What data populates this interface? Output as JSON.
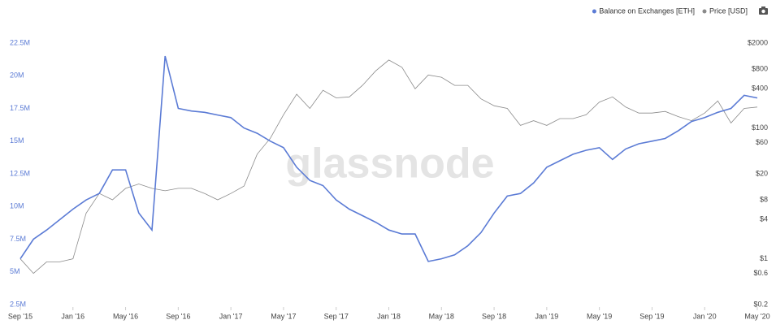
{
  "chart_data": {
    "type": "line",
    "watermark": "glassnode",
    "x": [
      "2015-09",
      "2015-10",
      "2015-11",
      "2015-12",
      "2016-01",
      "2016-02",
      "2016-03",
      "2016-04",
      "2016-05",
      "2016-06",
      "2016-07",
      "2016-08",
      "2016-09",
      "2016-10",
      "2016-11",
      "2016-12",
      "2017-01",
      "2017-02",
      "2017-03",
      "2017-04",
      "2017-05",
      "2017-06",
      "2017-07",
      "2017-08",
      "2017-09",
      "2017-10",
      "2017-11",
      "2017-12",
      "2018-01",
      "2018-02",
      "2018-03",
      "2018-04",
      "2018-05",
      "2018-06",
      "2018-07",
      "2018-08",
      "2018-09",
      "2018-10",
      "2018-11",
      "2018-12",
      "2019-01",
      "2019-02",
      "2019-03",
      "2019-04",
      "2019-05",
      "2019-06",
      "2019-07",
      "2019-08",
      "2019-09",
      "2019-10",
      "2019-11",
      "2019-12",
      "2020-01",
      "2020-02",
      "2020-03",
      "2020-04",
      "2020-05"
    ],
    "series": [
      {
        "name": "Balance on Exchanges [ETH]",
        "color": "#5b7bd5",
        "axis": "y",
        "values": [
          6000000,
          7500000,
          8200000,
          9000000,
          9800000,
          10500000,
          11000000,
          12800000,
          12800000,
          9500000,
          8200000,
          21500000,
          17500000,
          17300000,
          17200000,
          17000000,
          16800000,
          16000000,
          15600000,
          15000000,
          14500000,
          13000000,
          12000000,
          11600000,
          10500000,
          9800000,
          9300000,
          8800000,
          8200000,
          7900000,
          7900000,
          5800000,
          6000000,
          6300000,
          7000000,
          8000000,
          9500000,
          10800000,
          11000000,
          11800000,
          13000000,
          13500000,
          14000000,
          14300000,
          14500000,
          13600000,
          14400000,
          14800000,
          15000000,
          15200000,
          15800000,
          16500000,
          16800000,
          17200000,
          17500000,
          18500000,
          18300000
        ]
      },
      {
        "name": "Price [USD]",
        "color": "#8a8a8a",
        "axis": "y2",
        "values": [
          1.0,
          0.6,
          0.9,
          0.9,
          1.0,
          5,
          10,
          8,
          12,
          14,
          12,
          11,
          12,
          12,
          10,
          8,
          10,
          13,
          40,
          70,
          160,
          330,
          200,
          380,
          290,
          300,
          450,
          750,
          1100,
          850,
          400,
          650,
          600,
          450,
          450,
          280,
          220,
          200,
          110,
          130,
          110,
          140,
          140,
          160,
          250,
          300,
          210,
          170,
          170,
          180,
          150,
          130,
          170,
          260,
          120,
          200,
          210
        ]
      }
    ],
    "xlim": [
      "2015-09",
      "2020-05"
    ],
    "xticks": [
      {
        "value": "2015-09",
        "label": "Sep '15"
      },
      {
        "value": "2016-01",
        "label": "Jan '16"
      },
      {
        "value": "2016-05",
        "label": "May '16"
      },
      {
        "value": "2016-09",
        "label": "Sep '16"
      },
      {
        "value": "2017-01",
        "label": "Jan '17"
      },
      {
        "value": "2017-05",
        "label": "May '17"
      },
      {
        "value": "2017-09",
        "label": "Sep '17"
      },
      {
        "value": "2018-01",
        "label": "Jan '18"
      },
      {
        "value": "2018-05",
        "label": "May '18"
      },
      {
        "value": "2018-09",
        "label": "Sep '18"
      },
      {
        "value": "2019-01",
        "label": "Jan '19"
      },
      {
        "value": "2019-05",
        "label": "May '19"
      },
      {
        "value": "2019-09",
        "label": "Sep '19"
      },
      {
        "value": "2020-01",
        "label": "Jan '20"
      },
      {
        "value": "2020-05",
        "label": "May '20"
      }
    ],
    "ylim": [
      2500000,
      22500000
    ],
    "yticks": [
      {
        "value": 2500000,
        "label": "2.5M"
      },
      {
        "value": 5000000,
        "label": "5M"
      },
      {
        "value": 7500000,
        "label": "7.5M"
      },
      {
        "value": 10000000,
        "label": "10M"
      },
      {
        "value": 12500000,
        "label": "12.5M"
      },
      {
        "value": 15000000,
        "label": "15M"
      },
      {
        "value": 17500000,
        "label": "17.5M"
      },
      {
        "value": 20000000,
        "label": "20M"
      },
      {
        "value": 22500000,
        "label": "22.5M"
      }
    ],
    "y2lim": [
      0.2,
      2000
    ],
    "y2_log": true,
    "y2ticks": [
      {
        "value": 2000,
        "label": "$2000"
      },
      {
        "value": 800,
        "label": "$800"
      },
      {
        "value": 400,
        "label": "$400"
      },
      {
        "value": 100,
        "label": "$100"
      },
      {
        "value": 60,
        "label": "$60"
      },
      {
        "value": 20,
        "label": "$20"
      },
      {
        "value": 8,
        "label": "$8"
      },
      {
        "value": 4,
        "label": "$4"
      },
      {
        "value": 1,
        "label": "$1"
      },
      {
        "value": 0.6,
        "label": "$0.6"
      },
      {
        "value": 0.2,
        "label": "$0.2"
      }
    ],
    "grid": false,
    "legend": "top-right"
  }
}
